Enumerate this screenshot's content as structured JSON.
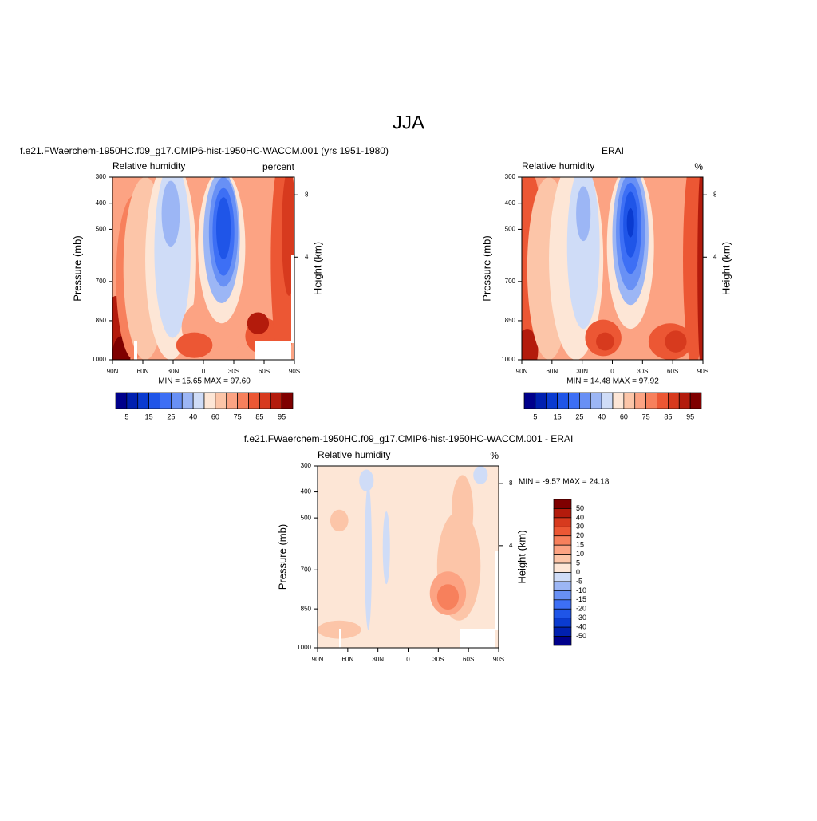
{
  "title": "JJA",
  "chart_data": [
    {
      "type": "contour",
      "title": "f.e21.FWaerchem-1950HC.f09_g17.CMIP6-hist-1950HC-WACCM.001 (yrs 1951-1980)",
      "subtitle_left": "Relative humidity",
      "subtitle_right": "percent",
      "ylabel": "Pressure (mb)",
      "y2label": "Height (km)",
      "xlim": [
        90,
        -90
      ],
      "xticks": [
        {
          "value": 90,
          "label": "90N"
        },
        {
          "value": 60,
          "label": "60N"
        },
        {
          "value": 30,
          "label": "30N"
        },
        0,
        {
          "value": -30,
          "label": "30S"
        },
        {
          "value": -60,
          "label": "60S"
        },
        {
          "value": -90,
          "label": "90S"
        }
      ],
      "ylim": [
        1000,
        300
      ],
      "yticks": [
        300,
        400,
        500,
        700,
        850,
        1000
      ],
      "y2ticks": [
        4,
        8
      ],
      "stats": "MIN =  15.65  MAX =  97.60",
      "colorbar": {
        "orientation": "horizontal",
        "colors": [
          "#00008b",
          "#0020b0",
          "#0a3bd0",
          "#1f55e8",
          "#3d6ff5",
          "#6890f5",
          "#9cb6f5",
          "#cfdcf7",
          "#fde6d6",
          "#fcc5a8",
          "#fca383",
          "#f7805c",
          "#ec5734",
          "#d73a1e",
          "#b31b0c",
          "#7f0000"
        ],
        "labels": [
          5,
          15,
          25,
          40,
          60,
          75,
          85,
          95
        ]
      }
    },
    {
      "type": "contour",
      "title": "ERAI",
      "subtitle_left": "Relative humidity",
      "subtitle_right": "%",
      "ylabel": "Pressure (mb)",
      "y2label": "Height (km)",
      "xlim": [
        90,
        -90
      ],
      "xticks": [
        {
          "value": 90,
          "label": "90N"
        },
        {
          "value": 60,
          "label": "60N"
        },
        {
          "value": 30,
          "label": "30N"
        },
        0,
        {
          "value": -30,
          "label": "30S"
        },
        {
          "value": -60,
          "label": "60S"
        },
        {
          "value": -90,
          "label": "90S"
        }
      ],
      "ylim": [
        1000,
        300
      ],
      "yticks": [
        300,
        400,
        500,
        700,
        850,
        1000
      ],
      "y2ticks": [
        4,
        8
      ],
      "stats": "MIN =  14.48  MAX =  97.92",
      "colorbar": {
        "orientation": "horizontal",
        "colors": [
          "#00008b",
          "#0020b0",
          "#0a3bd0",
          "#1f55e8",
          "#3d6ff5",
          "#6890f5",
          "#9cb6f5",
          "#cfdcf7",
          "#fde6d6",
          "#fcc5a8",
          "#fca383",
          "#f7805c",
          "#ec5734",
          "#d73a1e",
          "#b31b0c",
          "#7f0000"
        ],
        "labels": [
          5,
          15,
          25,
          40,
          60,
          75,
          85,
          95
        ]
      }
    },
    {
      "type": "contour",
      "title": "f.e21.FWaerchem-1950HC.f09_g17.CMIP6-hist-1950HC-WACCM.001 - ERAI",
      "subtitle_left": "Relative humidity",
      "subtitle_right": "%",
      "ylabel": "Pressure (mb)",
      "y2label": "Height (km)",
      "xlim": [
        90,
        -90
      ],
      "xticks": [
        {
          "value": 90,
          "label": "90N"
        },
        {
          "value": 60,
          "label": "60N"
        },
        {
          "value": 30,
          "label": "30N"
        },
        0,
        {
          "value": -30,
          "label": "30S"
        },
        {
          "value": -60,
          "label": "60S"
        },
        {
          "value": -90,
          "label": "90S"
        }
      ],
      "ylim": [
        1000,
        300
      ],
      "yticks": [
        300,
        400,
        500,
        700,
        850,
        1000
      ],
      "y2ticks": [
        4,
        8
      ],
      "stats": "MIN =  -9.57  MAX =  24.18",
      "colorbar": {
        "orientation": "vertical",
        "colors": [
          "#7f0000",
          "#b31b0c",
          "#d73a1e",
          "#ec5734",
          "#f7805c",
          "#fca383",
          "#fcc5a8",
          "#fde6d6",
          "#cfdcf7",
          "#9cb6f5",
          "#6890f5",
          "#3d6ff5",
          "#1f55e8",
          "#0a3bd0",
          "#0020b0",
          "#00008b"
        ],
        "labels": [
          50,
          40,
          30,
          20,
          15,
          10,
          5,
          0,
          -5,
          -10,
          -15,
          -20,
          -30,
          -40,
          -50
        ]
      }
    }
  ]
}
